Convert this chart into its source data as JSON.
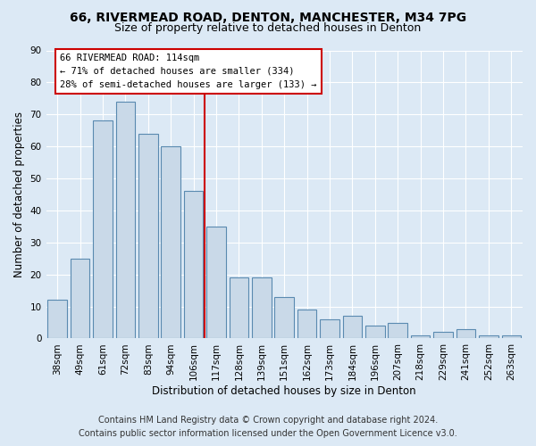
{
  "title_line1": "66, RIVERMEAD ROAD, DENTON, MANCHESTER, M34 7PG",
  "title_line2": "Size of property relative to detached houses in Denton",
  "xlabel": "Distribution of detached houses by size in Denton",
  "ylabel": "Number of detached properties",
  "categories": [
    "38sqm",
    "49sqm",
    "61sqm",
    "72sqm",
    "83sqm",
    "94sqm",
    "106sqm",
    "117sqm",
    "128sqm",
    "139sqm",
    "151sqm",
    "162sqm",
    "173sqm",
    "184sqm",
    "196sqm",
    "207sqm",
    "218sqm",
    "229sqm",
    "241sqm",
    "252sqm",
    "263sqm"
  ],
  "values": [
    12,
    25,
    68,
    74,
    64,
    60,
    46,
    35,
    19,
    19,
    13,
    9,
    6,
    7,
    4,
    5,
    1,
    2,
    3,
    1,
    1
  ],
  "bar_color": "#c9d9e8",
  "bar_edge_color": "#5a8ab0",
  "reference_line_x": 6.5,
  "annotation_line1": "66 RIVERMEAD ROAD: 114sqm",
  "annotation_line2": "← 71% of detached houses are smaller (334)",
  "annotation_line3": "28% of semi-detached houses are larger (133) →",
  "annotation_box_color": "#ffffff",
  "annotation_box_edge_color": "#cc0000",
  "vline_color": "#cc0000",
  "ylim": [
    0,
    90
  ],
  "yticks": [
    0,
    10,
    20,
    30,
    40,
    50,
    60,
    70,
    80,
    90
  ],
  "footer_line1": "Contains HM Land Registry data © Crown copyright and database right 2024.",
  "footer_line2": "Contains public sector information licensed under the Open Government Licence v3.0.",
  "background_color": "#dce9f5",
  "plot_background_color": "#dce9f5",
  "grid_color": "#ffffff",
  "title_fontsize": 10,
  "subtitle_fontsize": 9,
  "axis_label_fontsize": 8.5,
  "tick_fontsize": 7.5,
  "footer_fontsize": 7,
  "annotation_fontsize": 7.5
}
